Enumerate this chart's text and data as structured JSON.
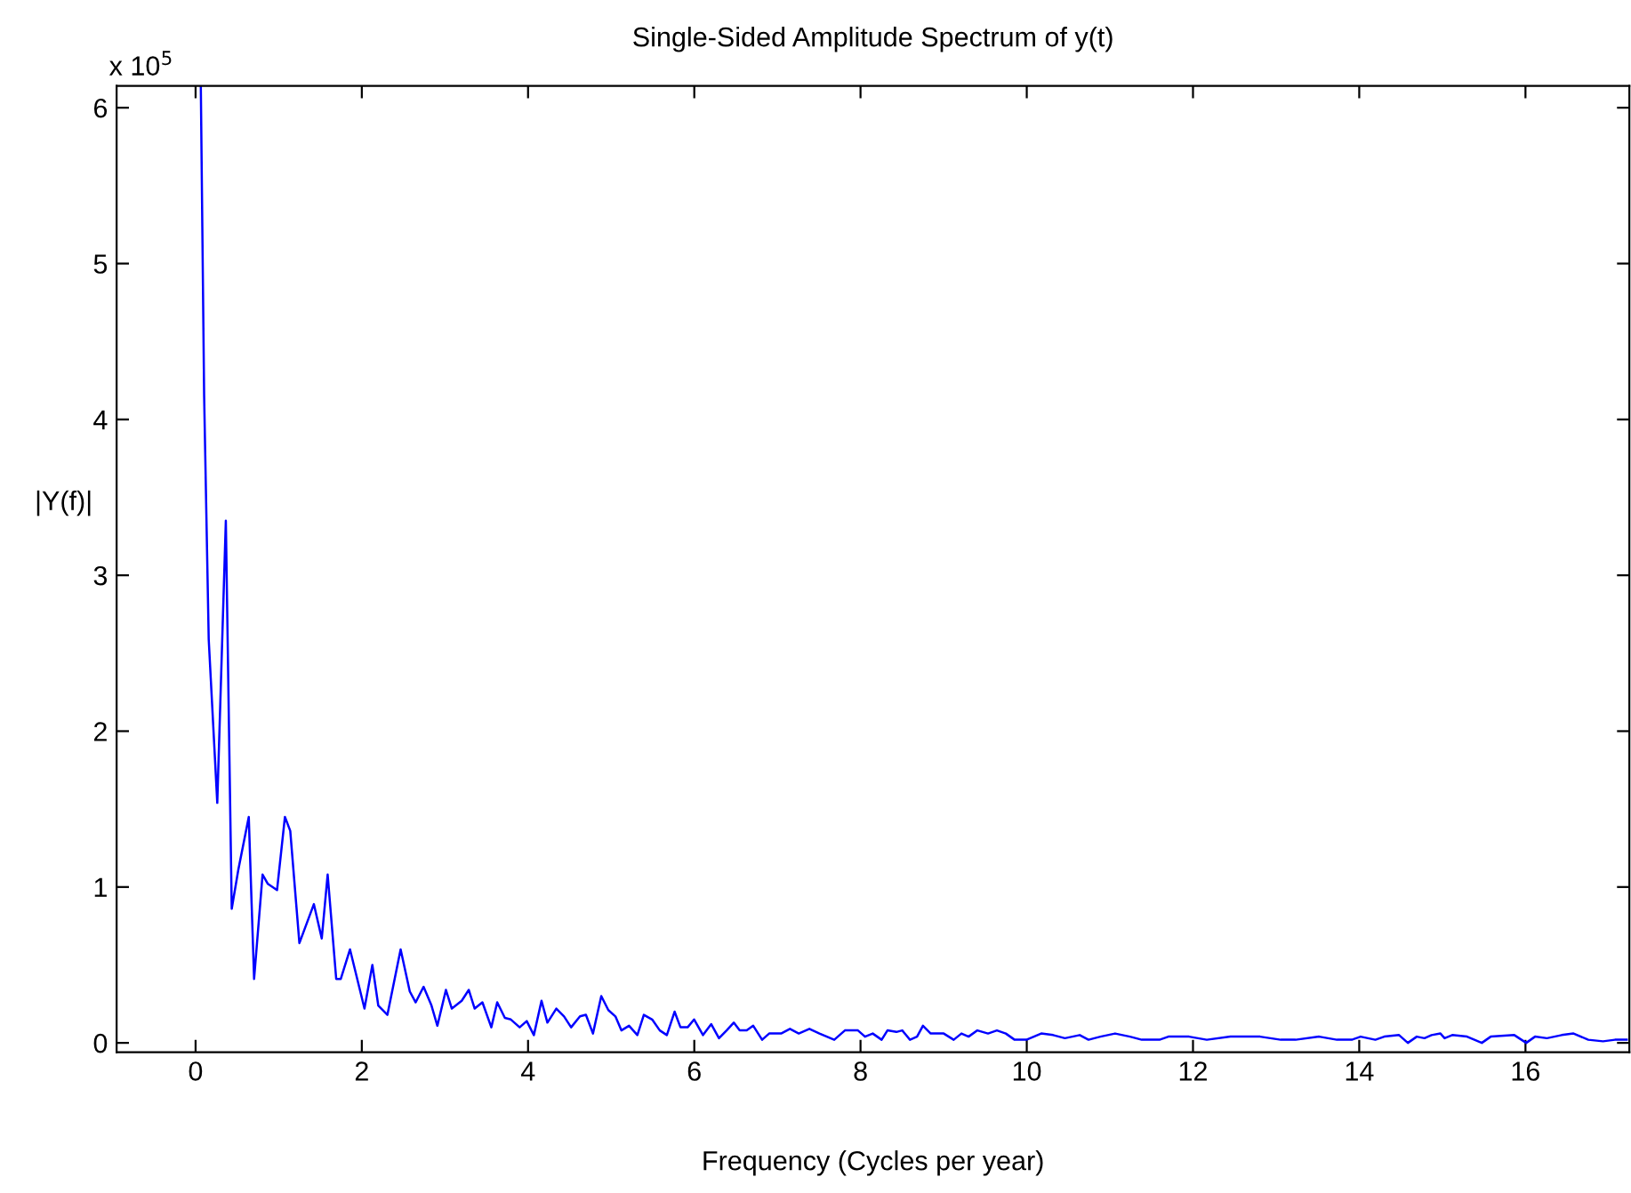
{
  "chart_data": {
    "type": "line",
    "title": "Single-Sided Amplitude Spectrum of y(t)",
    "xlabel": "Frequency (Cycles per year)",
    "ylabel": "|Y(f)|",
    "annotations": [
      "x 10$^{5}$"
    ],
    "xlim": [
      -0.95,
      17.25
    ],
    "ylim": [
      -0.06,
      6.14
    ],
    "xticks": [
      0,
      2,
      4,
      6,
      8,
      10,
      12,
      14,
      16
    ],
    "yticks": [
      0,
      1,
      2,
      3,
      4,
      5,
      6
    ],
    "grid": false,
    "legend": false,
    "line_style": "solid",
    "marker": "none",
    "series": [
      {
        "color": "#0000ff",
        "x": [
          0.063,
          0.103,
          0.158,
          0.261,
          0.364,
          0.435,
          0.514,
          0.64,
          0.704,
          0.806,
          0.87,
          0.98,
          1.075,
          1.139,
          1.249,
          1.423,
          1.518,
          1.589,
          1.692,
          1.747,
          1.858,
          2.032,
          2.127,
          2.198,
          2.308,
          2.467,
          2.577,
          2.648,
          2.743,
          2.838,
          2.909,
          3.012,
          3.083,
          3.202,
          3.287,
          3.358,
          3.451,
          3.558,
          3.629,
          3.721,
          3.793,
          3.899,
          3.984,
          4.07,
          4.162,
          4.233,
          4.34,
          4.433,
          4.518,
          4.625,
          4.696,
          4.781,
          4.881,
          4.966,
          5.051,
          5.123,
          5.215,
          5.315,
          5.393,
          5.493,
          5.585,
          5.67,
          5.763,
          5.834,
          5.92,
          5.998,
          6.105,
          6.204,
          6.297,
          6.389,
          6.475,
          6.546,
          6.631,
          6.709,
          6.816,
          6.901,
          7.044,
          7.151,
          7.257,
          7.385,
          7.506,
          7.684,
          7.812,
          7.969,
          8.054,
          8.147,
          8.254,
          8.324,
          8.431,
          8.502,
          8.595,
          8.68,
          8.751,
          8.844,
          9.001,
          9.121,
          9.214,
          9.3,
          9.406,
          9.534,
          9.641,
          9.748,
          9.854,
          9.996,
          10.174,
          10.317,
          10.459,
          10.637,
          10.743,
          10.886,
          11.063,
          11.242,
          11.384,
          11.597,
          11.704,
          11.953,
          12.166,
          12.451,
          12.807,
          13.056,
          13.234,
          13.518,
          13.732,
          13.91,
          14.016,
          14.194,
          14.301,
          14.479,
          14.585,
          14.692,
          14.785,
          14.87,
          14.977,
          15.027,
          15.119,
          15.297,
          15.475,
          15.582,
          15.866,
          16.009,
          16.115,
          16.258,
          16.436,
          16.578,
          16.756,
          16.933,
          17.076,
          17.218
        ],
        "values": [
          6.14,
          4.15,
          2.59,
          1.54,
          3.35,
          0.86,
          1.11,
          1.45,
          0.41,
          1.08,
          1.02,
          0.98,
          1.45,
          1.36,
          0.64,
          0.89,
          0.67,
          1.08,
          0.41,
          0.41,
          0.6,
          0.22,
          0.5,
          0.24,
          0.18,
          0.6,
          0.33,
          0.26,
          0.36,
          0.24,
          0.11,
          0.34,
          0.22,
          0.27,
          0.34,
          0.22,
          0.26,
          0.1,
          0.26,
          0.16,
          0.15,
          0.1,
          0.14,
          0.05,
          0.27,
          0.13,
          0.22,
          0.17,
          0.1,
          0.17,
          0.18,
          0.06,
          0.3,
          0.21,
          0.17,
          0.08,
          0.11,
          0.05,
          0.18,
          0.15,
          0.08,
          0.05,
          0.2,
          0.1,
          0.1,
          0.15,
          0.05,
          0.12,
          0.03,
          0.08,
          0.13,
          0.08,
          0.08,
          0.11,
          0.02,
          0.06,
          0.06,
          0.09,
          0.06,
          0.09,
          0.06,
          0.02,
          0.08,
          0.08,
          0.04,
          0.06,
          0.02,
          0.08,
          0.07,
          0.08,
          0.02,
          0.04,
          0.11,
          0.06,
          0.06,
          0.02,
          0.06,
          0.04,
          0.08,
          0.06,
          0.08,
          0.06,
          0.02,
          0.02,
          0.06,
          0.05,
          0.03,
          0.05,
          0.02,
          0.04,
          0.06,
          0.04,
          0.02,
          0.02,
          0.04,
          0.04,
          0.02,
          0.04,
          0.04,
          0.02,
          0.02,
          0.04,
          0.02,
          0.02,
          0.04,
          0.02,
          0.04,
          0.05,
          0.0,
          0.04,
          0.03,
          0.05,
          0.06,
          0.03,
          0.05,
          0.04,
          0.0,
          0.04,
          0.05,
          0.0,
          0.04,
          0.03,
          0.05,
          0.06,
          0.02,
          0.01,
          0.02,
          0.02
        ]
      }
    ]
  }
}
